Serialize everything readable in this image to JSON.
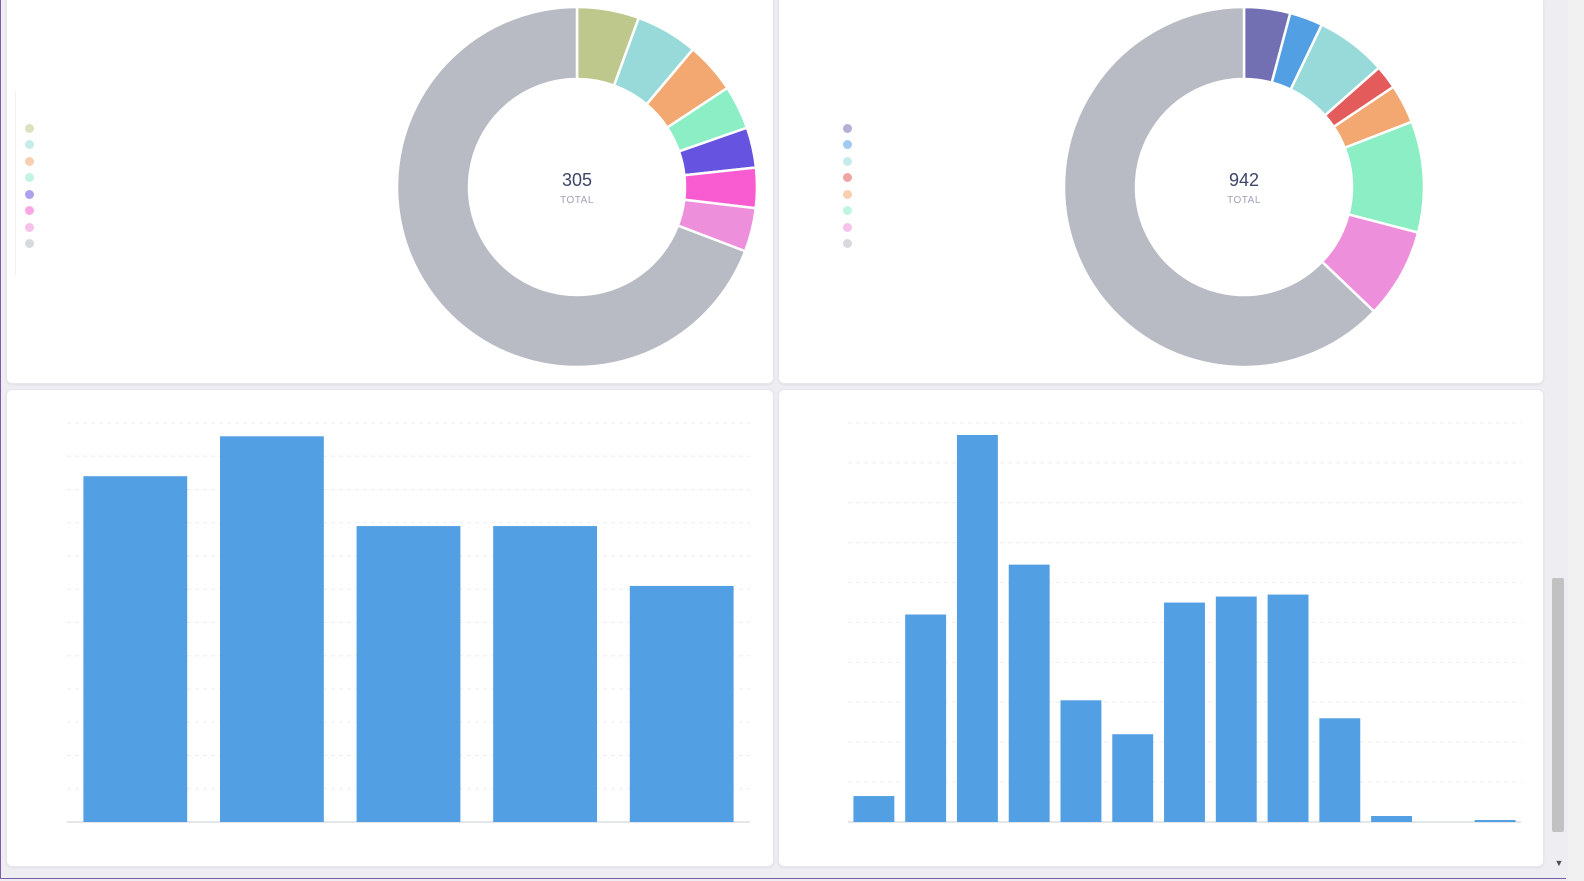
{
  "chart_data": [
    {
      "type": "pie",
      "variant": "donut",
      "center_value": "305",
      "center_label": "TOTAL",
      "legend_position": "left",
      "slices": [
        {
          "name": "",
          "value": 5.57,
          "color": "#bfc88c"
        },
        {
          "name": "",
          "value": 5.57,
          "color": "#98dad9"
        },
        {
          "name": "",
          "value": 4.59,
          "color": "#f2a870"
        },
        {
          "name": "",
          "value": 3.93,
          "color": "#8ceec4"
        },
        {
          "name": "",
          "value": 3.61,
          "color": "#6653e0"
        },
        {
          "name": "",
          "value": 3.61,
          "color": "#f95cd0"
        },
        {
          "name": "",
          "value": 3.93,
          "color": "#ee8fdc"
        },
        {
          "name": "",
          "value": 69.19,
          "color": "#b8bac4"
        }
      ]
    },
    {
      "type": "pie",
      "variant": "donut",
      "center_value": "942",
      "center_label": "TOTAL",
      "legend_position": "left",
      "slices": [
        {
          "name": "",
          "value": 4.14,
          "color": "#7270b3"
        },
        {
          "name": "",
          "value": 2.97,
          "color": "#539fe3"
        },
        {
          "name": "",
          "value": 6.37,
          "color": "#98dad9"
        },
        {
          "name": "",
          "value": 2.12,
          "color": "#e35b5b"
        },
        {
          "name": "",
          "value": 3.5,
          "color": "#f2a870"
        },
        {
          "name": "",
          "value": 9.98,
          "color": "#8ceec4"
        },
        {
          "name": "",
          "value": 8.07,
          "color": "#ee8fdc"
        },
        {
          "name": "",
          "value": 62.85,
          "color": "#b8bac4"
        }
      ]
    },
    {
      "type": "bar",
      "title": "",
      "categories": [
        "",
        "",
        "",
        "",
        ""
      ],
      "values": [
        104,
        116,
        89,
        89,
        71
      ],
      "ylim": [
        0,
        120
      ],
      "ticks": [
        "",
        "",
        "",
        "",
        "",
        "",
        "",
        "",
        "",
        "",
        "",
        "",
        ""
      ],
      "xlabel": "",
      "ylabel": "",
      "grid": true,
      "color": "#529fe3"
    },
    {
      "type": "bar",
      "title": "",
      "categories": [
        "",
        "",
        "",
        "",
        "",
        "",
        "",
        "",
        "",
        "",
        "",
        "",
        ""
      ],
      "values": [
        13,
        104,
        194,
        129,
        61,
        44,
        110,
        113,
        114,
        52,
        3,
        0,
        1
      ],
      "ylim": [
        0,
        200
      ],
      "ticks": [
        "",
        "",
        "",
        "",
        "",
        "",
        "",
        "",
        "",
        "",
        ""
      ],
      "xlabel": "",
      "ylabel": "",
      "grid": true,
      "color": "#529fe3"
    }
  ]
}
